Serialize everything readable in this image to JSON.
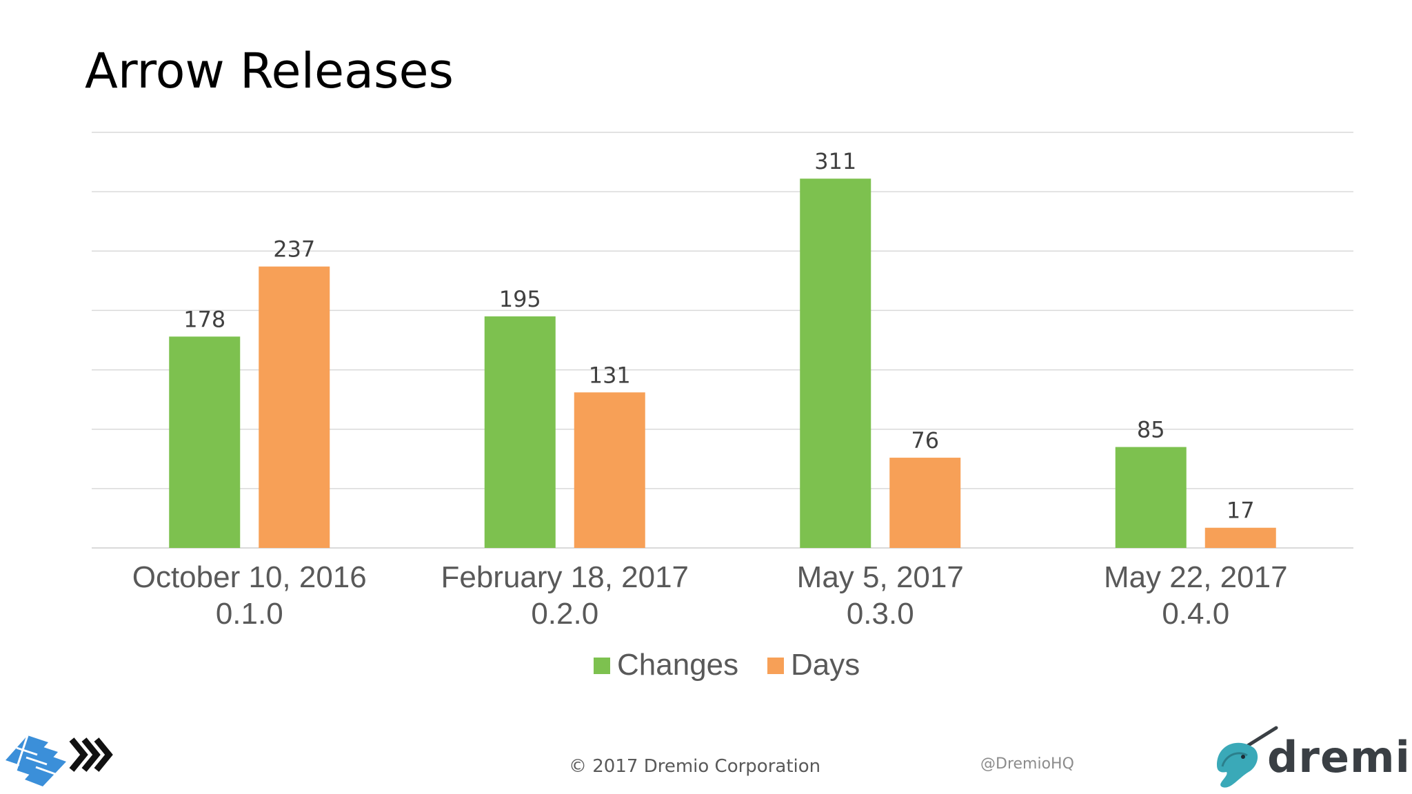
{
  "slide": {
    "title": "Arrow Releases",
    "footer_copyright": "© 2017 Dremio Corporation",
    "footer_handle": "@DremioHQ",
    "brand_logo_text": "dremio"
  },
  "colors": {
    "changes": "#7dc14f",
    "days": "#f7a057",
    "gridline": "#d9d9d9",
    "axis_label": "#595959",
    "data_label": "#404040"
  },
  "chart_data": {
    "type": "bar",
    "title": "",
    "xlabel": "",
    "ylabel": "",
    "ylim": [
      0,
      350
    ],
    "gridlines": true,
    "legend_position": "bottom",
    "categories": [
      {
        "date": "October 10, 2016",
        "version": "0.1.0"
      },
      {
        "date": "February 18, 2017",
        "version": "0.2.0"
      },
      {
        "date": "May 5, 2017",
        "version": "0.3.0"
      },
      {
        "date": "May 22, 2017",
        "version": "0.4.0"
      }
    ],
    "series": [
      {
        "name": "Changes",
        "values": [
          178,
          195,
          311,
          85
        ]
      },
      {
        "name": "Days",
        "values": [
          237,
          131,
          76,
          17
        ]
      }
    ]
  }
}
